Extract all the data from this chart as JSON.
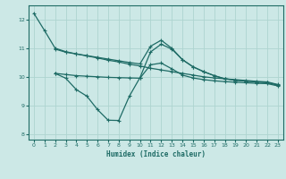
{
  "bg_color": "#cce8e6",
  "line_color": "#1e6b65",
  "grid_color": "#aed4d0",
  "xlabel": "Humidex (Indice chaleur)",
  "xlim": [
    -0.5,
    23.5
  ],
  "ylim": [
    7.8,
    12.5
  ],
  "yticks": [
    8,
    9,
    10,
    11,
    12
  ],
  "xticks": [
    0,
    1,
    2,
    3,
    4,
    5,
    6,
    7,
    8,
    9,
    10,
    11,
    12,
    13,
    14,
    15,
    16,
    17,
    18,
    19,
    20,
    21,
    22,
    23
  ],
  "line1_x": [
    0,
    1,
    2,
    3,
    4,
    5,
    6,
    7,
    8,
    9,
    10,
    11,
    12,
    13,
    14,
    15,
    16,
    17,
    18,
    19,
    20,
    21,
    22,
    23
  ],
  "line1_y": [
    12.22,
    11.62,
    11.0,
    10.88,
    10.8,
    10.73,
    10.66,
    10.58,
    10.52,
    10.44,
    10.38,
    10.3,
    10.24,
    10.18,
    10.12,
    10.06,
    10.0,
    9.96,
    9.93,
    9.9,
    9.87,
    9.84,
    9.82,
    9.73
  ],
  "line2_x": [
    2,
    3,
    4,
    5,
    6,
    7,
    8,
    9,
    10,
    11,
    12,
    13,
    14,
    15,
    16,
    17,
    18,
    19,
    20,
    21,
    22,
    23
  ],
  "line2_y": [
    10.97,
    10.86,
    10.8,
    10.74,
    10.68,
    10.62,
    10.56,
    10.5,
    10.45,
    11.07,
    11.28,
    11.0,
    10.6,
    10.35,
    10.18,
    10.04,
    9.93,
    9.88,
    9.85,
    9.82,
    9.8,
    9.71
  ],
  "line3_x": [
    2,
    3,
    4,
    5,
    6,
    7,
    8,
    9,
    10,
    11,
    12,
    13,
    14,
    15,
    16,
    17,
    18,
    19,
    20,
    21,
    22,
    23
  ],
  "line3_y": [
    10.12,
    9.95,
    9.55,
    9.32,
    8.85,
    8.48,
    8.47,
    9.32,
    9.97,
    10.87,
    11.14,
    10.97,
    10.6,
    10.35,
    10.18,
    10.04,
    9.93,
    9.88,
    9.85,
    9.82,
    9.8,
    9.71
  ],
  "line4_x": [
    2,
    3,
    4,
    5,
    6,
    7,
    8,
    9,
    10,
    11,
    12,
    13,
    14,
    15,
    16,
    17,
    18,
    19,
    20,
    21,
    22,
    23
  ],
  "line4_y": [
    10.12,
    10.08,
    10.04,
    10.02,
    10.0,
    9.98,
    9.97,
    9.96,
    9.95,
    10.42,
    10.48,
    10.28,
    10.06,
    9.96,
    9.9,
    9.86,
    9.83,
    9.81,
    9.79,
    9.77,
    9.76,
    9.68
  ]
}
